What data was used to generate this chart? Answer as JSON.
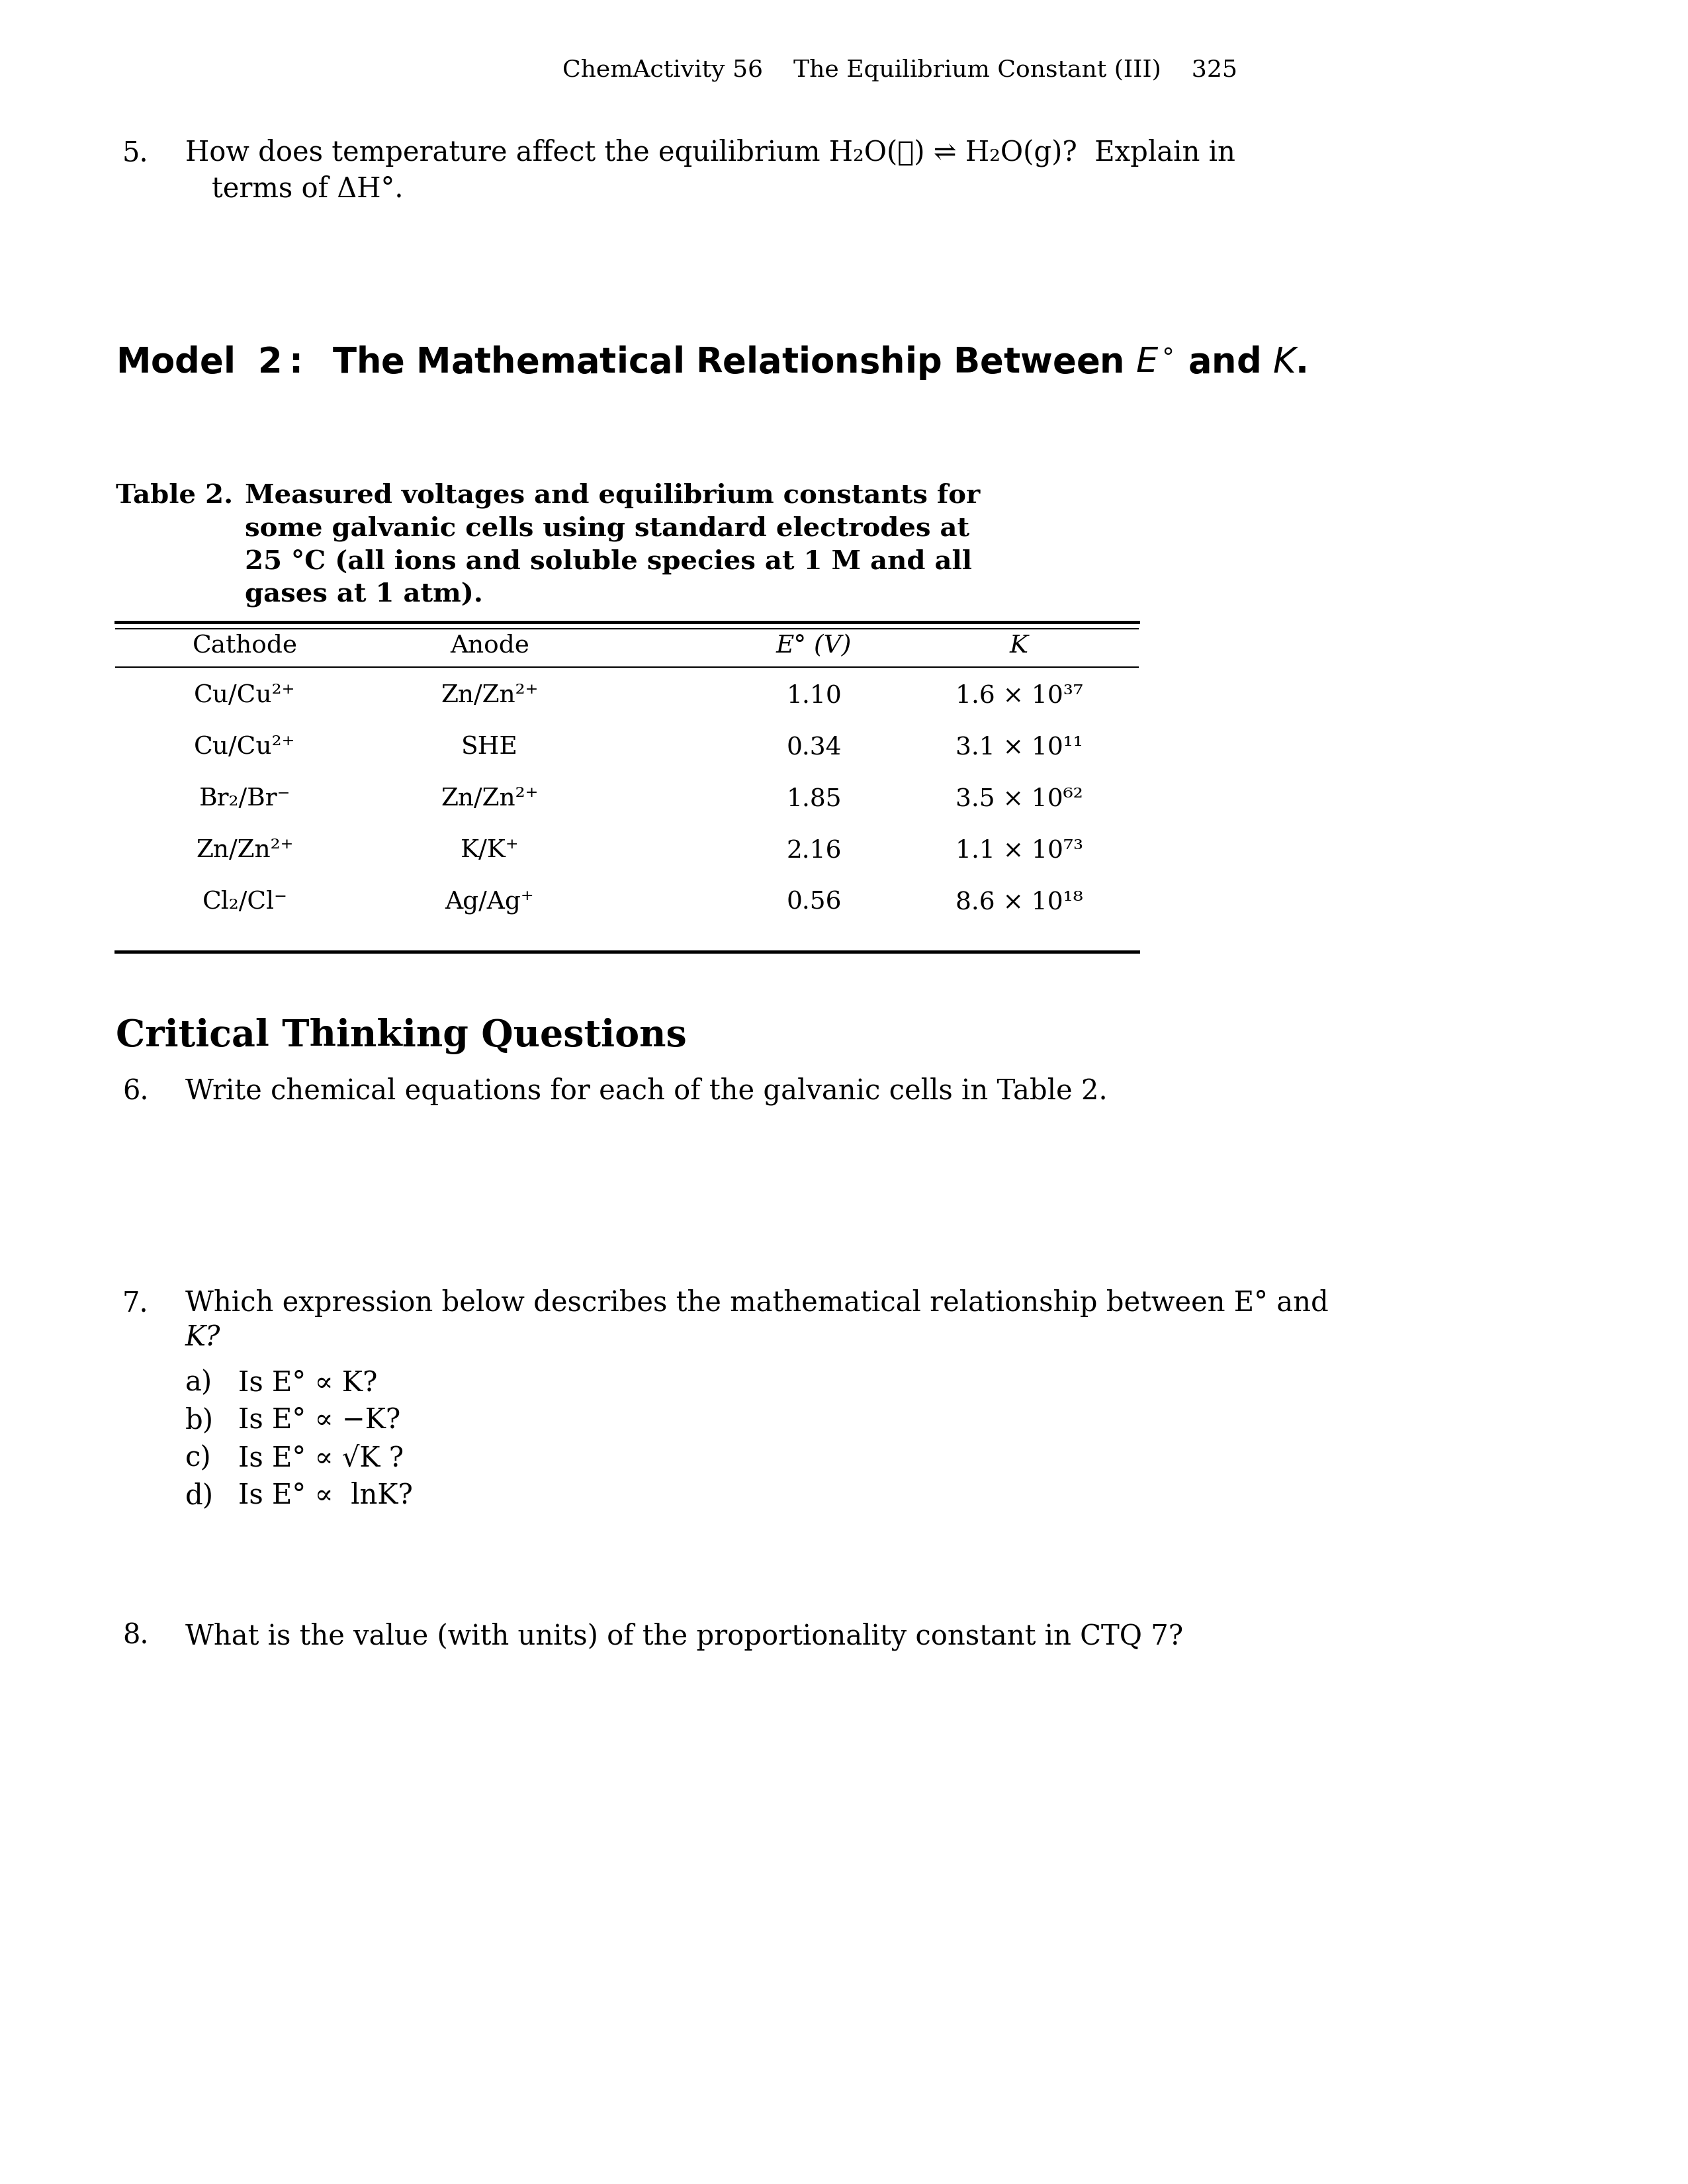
{
  "background_color": "#ffffff",
  "page_header": "ChemActivity 56    The Equilibrium Constant (III)    325",
  "q5_line1": "How does temperature affect the equilibrium H₂O(ℓ) ⇌ H₂O(g)?  Explain in",
  "q5_line2": "terms of ΔH°.",
  "table_label": "Table 2.",
  "table_cap1": "Measured voltages and equilibrium constants for",
  "table_cap2": "some galvanic cells using standard electrodes at",
  "table_cap3": "25 °C (all ions and soluble species at 1 M and all",
  "table_cap4": "gases at 1 atm).",
  "col_headers": [
    "Cathode",
    "Anode",
    "E° (V)",
    "K"
  ],
  "table_rows": [
    [
      "Cu/Cu²⁺",
      "Zn/Zn²⁺",
      "1.10",
      "1.6 × 10³⁷"
    ],
    [
      "Cu/Cu²⁺",
      "SHE",
      "0.34",
      "3.1 × 10¹¹"
    ],
    [
      "Br₂/Br⁻",
      "Zn/Zn²⁺",
      "1.85",
      "3.5 × 10⁶²"
    ],
    [
      "Zn/Zn²⁺",
      "K/K⁺",
      "2.16",
      "1.1 × 10⁷³"
    ],
    [
      "Cl₂/Cl⁻",
      "Ag/Ag⁺",
      "0.56",
      "8.6 × 10¹⁸"
    ]
  ],
  "ctq_heading": "Critical Thinking Questions",
  "q6_text": "Write chemical equations for each of the galvanic cells in Table 2.",
  "q7_line1": "Which expression below describes the mathematical relationship between E° and",
  "q7_line2": "K?",
  "q7a": "Is E° ∝ K?",
  "q7b": "Is E° ∝ −K?",
  "q7c": "Is E° ∝ √K ?",
  "q7d": "Is E° ∝  lnK?",
  "q8_text": "What is the value (with units) of the proportionality constant in CTQ 7?"
}
